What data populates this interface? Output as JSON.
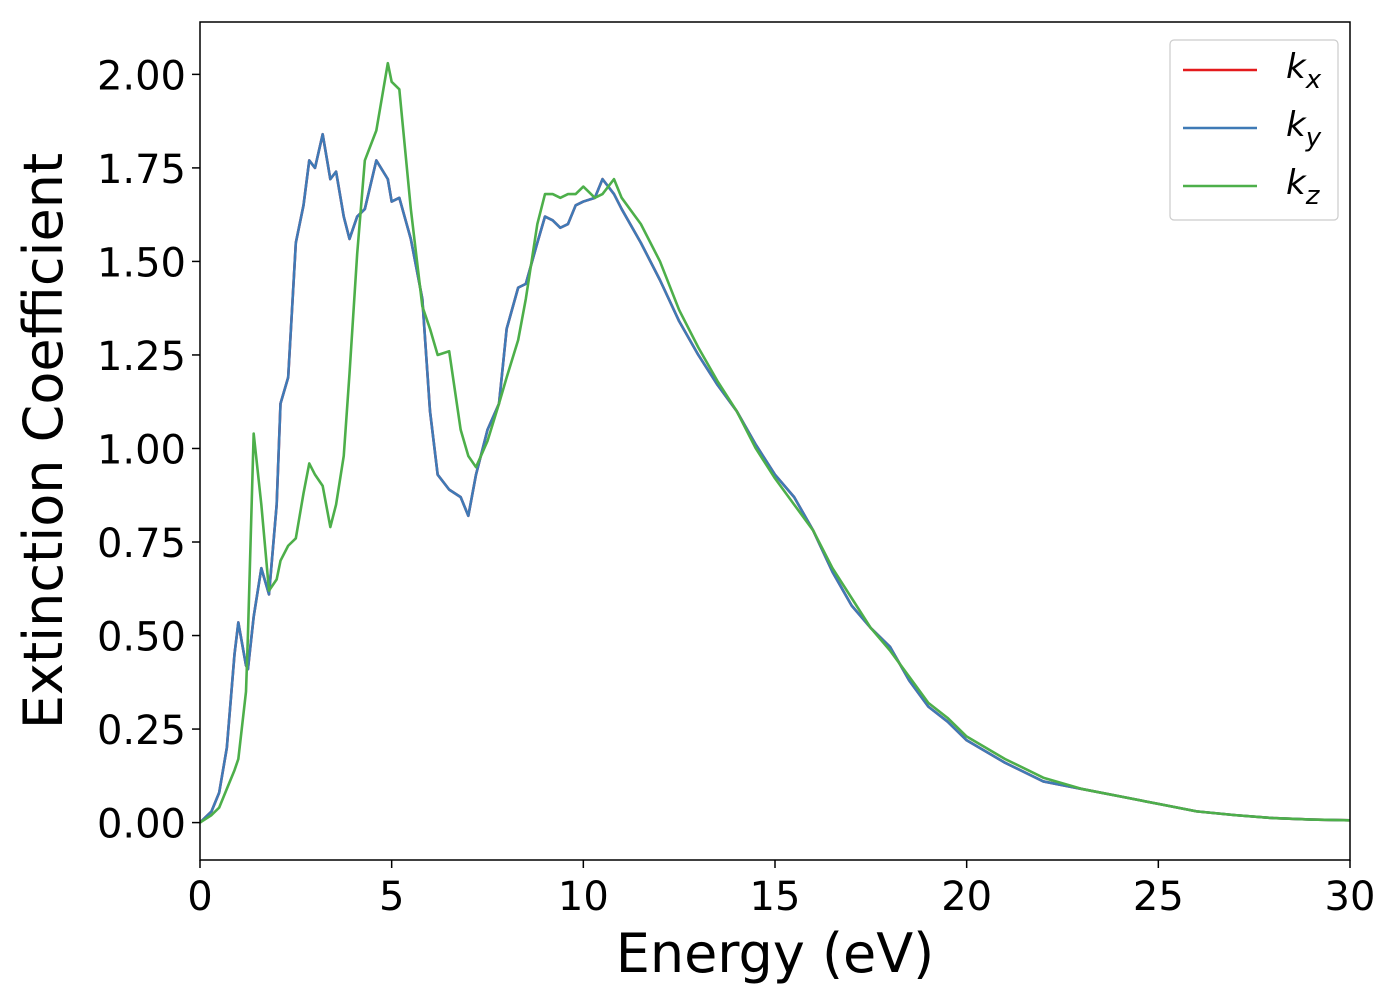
{
  "chart_data": {
    "type": "line",
    "xlabel": "Energy (eV)",
    "ylabel": "Extinction Coefficient",
    "x": [
      0,
      0.3,
      0.5,
      0.7,
      0.9,
      1.0,
      1.2,
      1.25,
      1.4,
      1.6,
      1.8,
      2.0,
      2.1,
      2.3,
      2.5,
      2.6,
      2.7,
      2.85,
      3.0,
      3.2,
      3.4,
      3.55,
      3.75,
      3.9,
      4.1,
      4.3,
      4.6,
      4.9,
      5.0,
      5.2,
      5.5,
      5.8,
      6.0,
      6.2,
      6.5,
      6.8,
      7.0,
      7.2,
      7.5,
      7.8,
      8.0,
      8.3,
      8.5,
      8.8,
      9.0,
      9.2,
      9.4,
      9.6,
      9.8,
      10.0,
      10.3,
      10.5,
      10.8,
      11.0,
      11.5,
      12.0,
      12.5,
      13.0,
      13.5,
      14.0,
      14.5,
      15.0,
      15.5,
      16.0,
      16.5,
      17.0,
      17.5,
      18.0,
      18.5,
      19.0,
      19.5,
      20.0,
      21,
      22,
      23,
      24,
      25,
      26,
      27,
      28,
      29,
      30
    ],
    "series": [
      {
        "name": "k_x",
        "color": "#e41a1c",
        "values": [
          0.0,
          0.03,
          0.08,
          0.2,
          0.45,
          0.535,
          0.42,
          0.41,
          0.55,
          0.68,
          0.61,
          0.85,
          1.12,
          1.19,
          1.55,
          1.6,
          1.65,
          1.77,
          1.75,
          1.84,
          1.72,
          1.74,
          1.62,
          1.56,
          1.62,
          1.64,
          1.77,
          1.72,
          1.66,
          1.67,
          1.56,
          1.4,
          1.1,
          0.93,
          0.89,
          0.87,
          0.82,
          0.93,
          1.05,
          1.12,
          1.32,
          1.43,
          1.44,
          1.55,
          1.62,
          1.61,
          1.59,
          1.6,
          1.65,
          1.66,
          1.67,
          1.72,
          1.68,
          1.64,
          1.55,
          1.45,
          1.34,
          1.25,
          1.17,
          1.1,
          1.01,
          0.93,
          0.87,
          0.78,
          0.67,
          0.58,
          0.52,
          0.47,
          0.38,
          0.31,
          0.27,
          0.22,
          0.16,
          0.11,
          0.09,
          0.07,
          0.05,
          0.03,
          0.02,
          0.012,
          0.008,
          0.006
        ]
      },
      {
        "name": "k_y",
        "color": "#3f7ab6",
        "values": [
          0.0,
          0.03,
          0.08,
          0.2,
          0.45,
          0.535,
          0.42,
          0.41,
          0.55,
          0.68,
          0.61,
          0.85,
          1.12,
          1.19,
          1.55,
          1.6,
          1.65,
          1.77,
          1.75,
          1.84,
          1.72,
          1.74,
          1.62,
          1.56,
          1.62,
          1.64,
          1.77,
          1.72,
          1.66,
          1.67,
          1.56,
          1.4,
          1.1,
          0.93,
          0.89,
          0.87,
          0.82,
          0.93,
          1.05,
          1.12,
          1.32,
          1.43,
          1.44,
          1.55,
          1.62,
          1.61,
          1.59,
          1.6,
          1.65,
          1.66,
          1.67,
          1.72,
          1.68,
          1.64,
          1.55,
          1.45,
          1.34,
          1.25,
          1.17,
          1.1,
          1.01,
          0.93,
          0.87,
          0.78,
          0.67,
          0.58,
          0.52,
          0.47,
          0.38,
          0.31,
          0.27,
          0.22,
          0.16,
          0.11,
          0.09,
          0.07,
          0.05,
          0.03,
          0.02,
          0.012,
          0.008,
          0.006
        ]
      },
      {
        "name": "k_z",
        "color": "#4daf4a",
        "values": [
          0.0,
          0.02,
          0.04,
          0.09,
          0.14,
          0.17,
          0.35,
          0.5,
          1.04,
          0.85,
          0.62,
          0.65,
          0.7,
          0.74,
          0.76,
          0.82,
          0.88,
          0.96,
          0.93,
          0.9,
          0.79,
          0.85,
          0.98,
          1.2,
          1.52,
          1.77,
          1.85,
          2.03,
          1.98,
          1.96,
          1.64,
          1.38,
          1.32,
          1.25,
          1.26,
          1.05,
          0.98,
          0.95,
          1.02,
          1.12,
          1.19,
          1.29,
          1.4,
          1.6,
          1.68,
          1.68,
          1.67,
          1.68,
          1.68,
          1.7,
          1.67,
          1.68,
          1.72,
          1.67,
          1.6,
          1.5,
          1.37,
          1.27,
          1.18,
          1.1,
          1.0,
          0.92,
          0.85,
          0.78,
          0.68,
          0.6,
          0.52,
          0.46,
          0.39,
          0.32,
          0.28,
          0.23,
          0.17,
          0.12,
          0.09,
          0.07,
          0.05,
          0.03,
          0.02,
          0.012,
          0.008,
          0.006
        ]
      }
    ],
    "xlim": [
      0,
      30
    ],
    "xticks": [
      0,
      5,
      10,
      15,
      20,
      25,
      30
    ],
    "ylim": [
      -0.1,
      2.14
    ],
    "yticks": [
      {
        "value": 0,
        "label": "0.00"
      },
      {
        "value": 0.25,
        "label": "0.25"
      },
      {
        "value": 0.5,
        "label": "0.50"
      },
      {
        "value": 0.75,
        "label": "0.75"
      },
      {
        "value": 1,
        "label": "1.00"
      },
      {
        "value": 1.25,
        "label": "1.25"
      },
      {
        "value": 1.5,
        "label": "1.50"
      },
      {
        "value": 1.75,
        "label": "1.75"
      },
      {
        "value": 2,
        "label": "2.00"
      }
    ],
    "grid": false,
    "legend": "upper right"
  }
}
